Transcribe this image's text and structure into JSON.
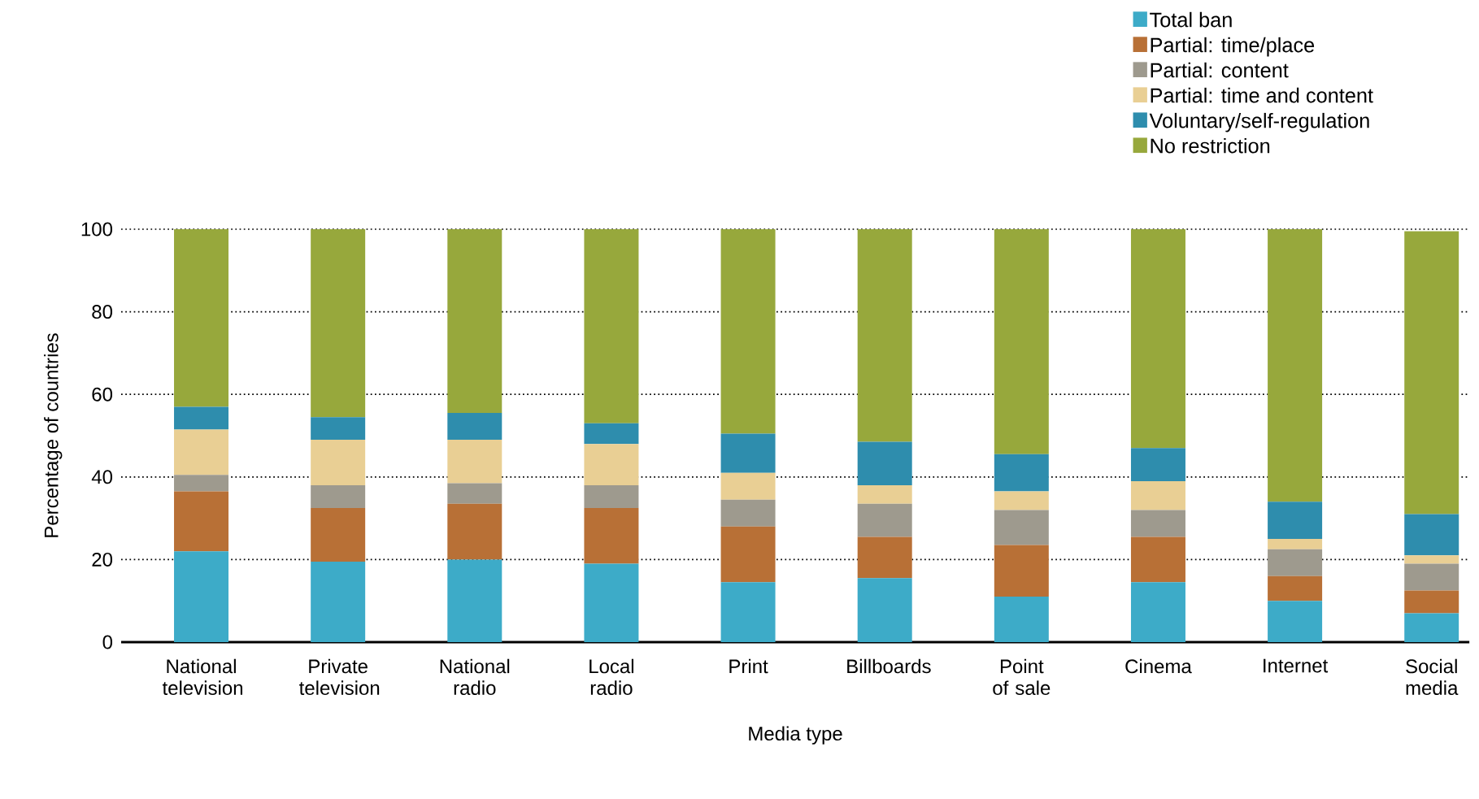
{
  "chart_data": {
    "type": "bar",
    "stacked": true,
    "xlabel": "Media type",
    "ylabel": "Percentage of countries",
    "categories": [
      "National television",
      "Private television",
      "National radio",
      "Local radio",
      "Print",
      "Billboards",
      "Point of sale",
      "Cinema",
      "Internet",
      "Social media"
    ],
    "series": [
      {
        "name": "Total ban",
        "color": "#3dabc8",
        "values": [
          22,
          19.5,
          20,
          19,
          14.5,
          15.5,
          11,
          14.5,
          10,
          7
        ]
      },
      {
        "name": "Partial: time/place",
        "color": "#b87036",
        "values": [
          14.5,
          13,
          13.5,
          13.5,
          13.5,
          10,
          12.5,
          11,
          6,
          5.5
        ]
      },
      {
        "name": "Partial: content",
        "color": "#9e9a8e",
        "values": [
          4,
          5.5,
          5,
          5.5,
          6.5,
          8,
          8.5,
          6.5,
          6.5,
          6.5
        ]
      },
      {
        "name": "Partial: time and content",
        "color": "#e9cf94",
        "values": [
          11,
          11,
          10.5,
          10,
          6.5,
          4.5,
          4.5,
          7,
          2.5,
          2
        ]
      },
      {
        "name": "Voluntary/self-regulation",
        "color": "#2e8dad",
        "values": [
          5.5,
          5.5,
          6.5,
          5,
          9.5,
          10.5,
          9,
          8,
          9,
          10
        ]
      },
      {
        "name": "No restriction",
        "color": "#97a83c",
        "values": [
          43,
          45.5,
          44.5,
          47,
          49.5,
          51.5,
          54.5,
          53,
          66,
          68.5
        ]
      }
    ],
    "ylim": [
      0,
      100
    ],
    "yticks": [
      0,
      20,
      40,
      60,
      80,
      100
    ],
    "grid": "y",
    "legend": "top right"
  }
}
